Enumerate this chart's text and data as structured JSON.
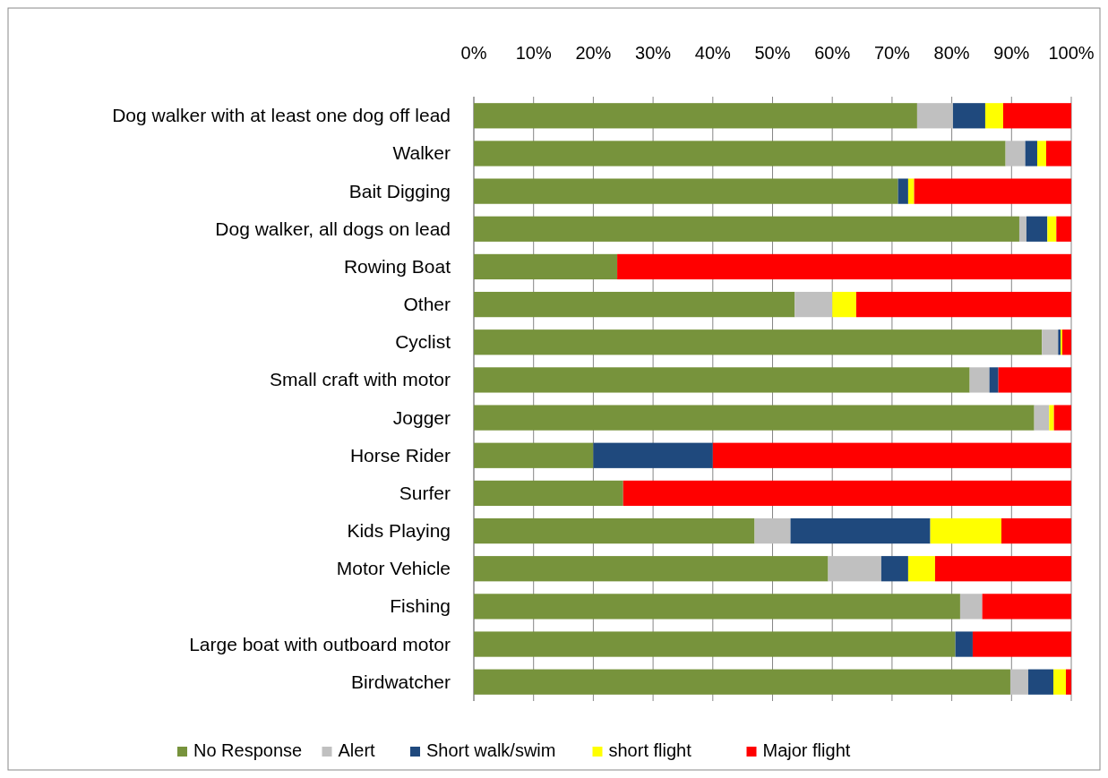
{
  "chart_data": {
    "type": "bar",
    "orientation": "horizontal",
    "stacked": true,
    "categories": [
      "Dog walker with at least one dog off lead",
      "Walker",
      "Bait Digging",
      "Dog walker, all dogs on lead",
      "Rowing Boat",
      "Other",
      "Cyclist",
      "Small craft with motor",
      "Jogger",
      "Horse Rider",
      "Surfer",
      "Kids Playing",
      "Motor Vehicle",
      "Fishing",
      "Large boat with outboard motor",
      "Birdwatcher"
    ],
    "series": [
      {
        "name": "No Response",
        "color": "#77933c",
        "values": [
          74.2,
          89,
          71,
          91.3,
          24,
          53.7,
          95.1,
          83,
          93.8,
          20,
          25,
          47,
          59.3,
          81.4,
          80.6,
          89.8
        ]
      },
      {
        "name": "Alert",
        "color": "#c0c0c0",
        "values": [
          6,
          3.3,
          0,
          1.2,
          0,
          6.3,
          2.7,
          3.3,
          2.5,
          0,
          0,
          6,
          8.9,
          3.7,
          0,
          3
        ]
      },
      {
        "name": "Short walk/swim",
        "color": "#1f497d",
        "values": [
          5.4,
          2,
          1.7,
          3.5,
          0,
          0,
          0.4,
          1.5,
          0,
          20,
          0,
          23.4,
          4.5,
          0,
          2.9,
          4.2
        ]
      },
      {
        "name": "short flight",
        "color": "#ffff00",
        "values": [
          3,
          1.5,
          1,
          1.5,
          0,
          4,
          0.3,
          0,
          0.8,
          0,
          0,
          11.9,
          4.5,
          0,
          0,
          2.1
        ]
      },
      {
        "name": "Major flight",
        "color": "#ff0000",
        "values": [
          11.4,
          4.2,
          26.3,
          2.5,
          76,
          36,
          1.5,
          12.2,
          2.9,
          60,
          75,
          11.7,
          22.8,
          14.9,
          16.5,
          0.9
        ]
      }
    ],
    "xlim": [
      0,
      100
    ],
    "xticks": [
      {
        "value": 0,
        "label": "0%"
      },
      {
        "value": 10,
        "label": "10%"
      },
      {
        "value": 20,
        "label": "20%"
      },
      {
        "value": 30,
        "label": "30%"
      },
      {
        "value": 40,
        "label": "40%"
      },
      {
        "value": 50,
        "label": "50%"
      },
      {
        "value": 60,
        "label": "60%"
      },
      {
        "value": 70,
        "label": "70%"
      },
      {
        "value": 80,
        "label": "80%"
      },
      {
        "value": 90,
        "label": "90%"
      },
      {
        "value": 100,
        "label": "100%"
      }
    ],
    "grid": "x",
    "legend": "bottom"
  }
}
